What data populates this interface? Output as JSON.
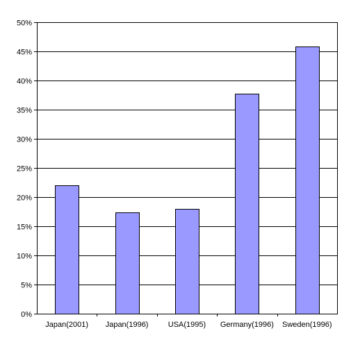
{
  "chart_data": {
    "type": "bar",
    "title": "",
    "xlabel": "",
    "ylabel": "",
    "categories": [
      "Japan(2001)",
      "Japan(1996)",
      "USA(1995)",
      "Germany(1996)",
      "Sweden(1996)"
    ],
    "values": [
      22.0,
      17.4,
      18.0,
      37.7,
      45.8
    ],
    "ylim": [
      0,
      50
    ],
    "y_tick_step": 5,
    "y_tick_labels": [
      "0%",
      "5%",
      "10%",
      "15%",
      "20%",
      "25%",
      "30%",
      "35%",
      "40%",
      "45%",
      "50%"
    ],
    "grid": true,
    "legend": "none",
    "colors": {
      "bar_fill": "#9999ff",
      "bar_stroke": "#000000",
      "grid": "#000000",
      "background": "#ffffff"
    }
  }
}
